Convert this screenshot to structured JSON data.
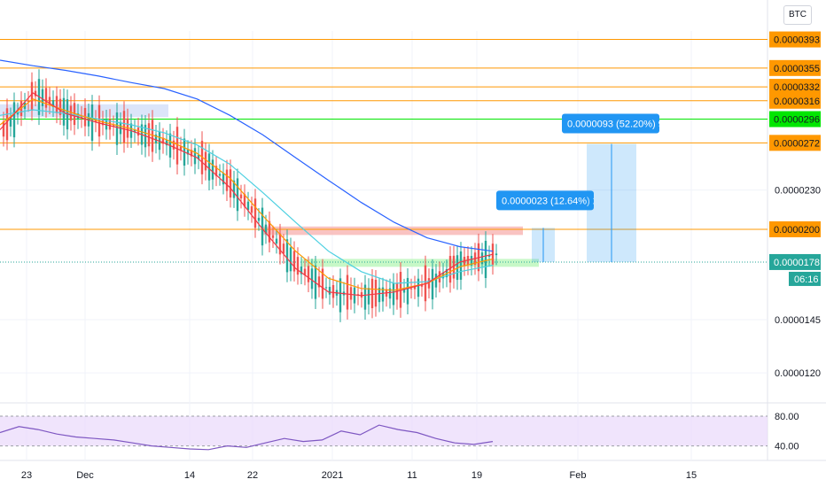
{
  "currency": "BTC",
  "countdown": "06:16",
  "chart_data": {
    "type": "candlestick",
    "title": "",
    "x_ticks": [
      "23",
      "Dec",
      "14",
      "22",
      "2021",
      "11",
      "19",
      "Feb",
      "15"
    ],
    "y_ticks": [
      "0.0000230",
      "0.0000145",
      "0.0000120"
    ],
    "y_range": [
      1.12e-05,
      4.05e-05
    ],
    "last_price": "0.0000178",
    "horizontal_levels": [
      {
        "label": "0.0000393",
        "value": 3.93e-05,
        "color": "#ff9800"
      },
      {
        "label": "0.0000355",
        "value": 3.55e-05,
        "color": "#ff9800"
      },
      {
        "label": "0.0000332",
        "value": 3.32e-05,
        "color": "#ff9800"
      },
      {
        "label": "0.0000316",
        "value": 3.16e-05,
        "color": "#ff9800"
      },
      {
        "label": "0.0000296",
        "value": 2.96e-05,
        "color": "#00e600"
      },
      {
        "label": "0.0000272",
        "value": 2.72e-05,
        "color": "#ff9800"
      },
      {
        "label": "0.0000200",
        "value": 2e-05,
        "color": "#ff9800"
      }
    ],
    "measurements": [
      {
        "label": "0.0000023 (12.64%) 23",
        "from": 1.78e-05,
        "to": 2.01e-05
      },
      {
        "label": "0.0000093 (52.20%) 93",
        "from": 1.78e-05,
        "to": 2.71e-05
      }
    ],
    "series": [
      {
        "color": "#2962ff",
        "values": [
          3.65e-05,
          3.58e-05,
          3.52e-05,
          3.45e-05,
          3.37e-05,
          3.3e-05,
          3.18e-05,
          3e-05,
          2.8e-05,
          2.58e-05,
          2.38e-05,
          2.2e-05,
          2.05e-05,
          1.94e-05,
          1.88e-05,
          1.85e-05
        ]
      },
      {
        "color": "#4dd0e1",
        "values": [
          3e-05,
          3.06e-05,
          3.02e-05,
          2.96e-05,
          2.9e-05,
          2.82e-05,
          2.7e-05,
          2.52e-05,
          2.28e-05,
          2.05e-05,
          1.85e-05,
          1.72e-05,
          1.65e-05,
          1.66e-05,
          1.72e-05,
          1.76e-05
        ]
      },
      {
        "color": "#ff9800",
        "values": [
          2.9e-05,
          3.18e-05,
          3.05e-05,
          2.94e-05,
          2.86e-05,
          2.76e-05,
          2.62e-05,
          2.4e-05,
          2.1e-05,
          1.85e-05,
          1.68e-05,
          1.62e-05,
          1.61e-05,
          1.65e-05,
          1.75e-05,
          1.8e-05
        ]
      },
      {
        "color": "#f23645",
        "values": [
          2.85e-05,
          3.25e-05,
          3.02e-05,
          2.92e-05,
          2.84e-05,
          2.72e-05,
          2.58e-05,
          2.32e-05,
          2e-05,
          1.74e-05,
          1.6e-05,
          1.58e-05,
          1.6e-05,
          1.65e-05,
          1.78e-05,
          1.83e-05
        ]
      }
    ],
    "rsi": {
      "levels": [
        "80.00",
        "40.00"
      ],
      "values": [
        58,
        66,
        62,
        56,
        52,
        50,
        48,
        44,
        40,
        38,
        36,
        35,
        40,
        38,
        44,
        50,
        46,
        48,
        60,
        55,
        68,
        62,
        58,
        50,
        44,
        42,
        46
      ]
    }
  }
}
